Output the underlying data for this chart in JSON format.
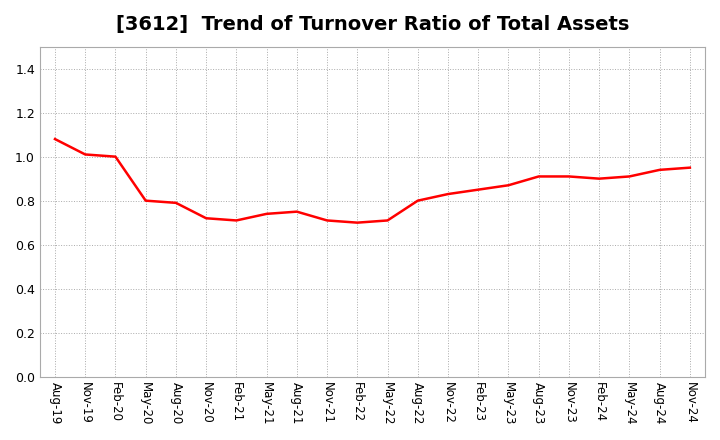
{
  "title": "[3612]  Trend of Turnover Ratio of Total Assets",
  "x_labels": [
    "Aug-19",
    "Nov-19",
    "Feb-20",
    "May-20",
    "Aug-20",
    "Nov-20",
    "Feb-21",
    "May-21",
    "Aug-21",
    "Nov-21",
    "Feb-22",
    "May-22",
    "Aug-22",
    "Nov-22",
    "Feb-23",
    "May-23",
    "Aug-23",
    "Nov-23",
    "Feb-24",
    "May-24",
    "Aug-24",
    "Nov-24"
  ],
  "values": [
    1.08,
    1.01,
    1.0,
    0.8,
    0.79,
    0.72,
    0.71,
    0.74,
    0.75,
    0.71,
    0.7,
    0.71,
    0.8,
    0.83,
    0.85,
    0.87,
    0.91,
    0.91,
    0.9,
    0.91,
    0.94,
    0.95
  ],
  "line_color": "#FF0000",
  "ylim": [
    0.0,
    1.5
  ],
  "yticks": [
    0.0,
    0.2,
    0.4,
    0.6,
    0.8,
    1.0,
    1.2,
    1.4
  ],
  "grid_color": "#AAAAAA",
  "background_color": "#FFFFFF",
  "title_fontsize": 14,
  "line_width": 1.8
}
